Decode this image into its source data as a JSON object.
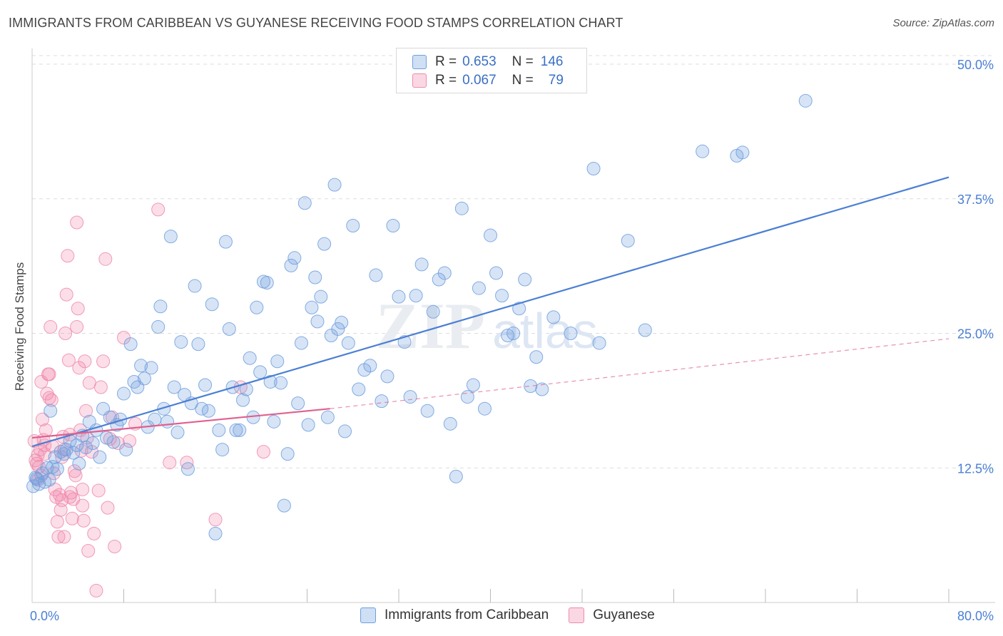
{
  "title": "IMMIGRANTS FROM CARIBBEAN VS GUYANESE RECEIVING FOOD STAMPS CORRELATION CHART",
  "source": "Source: ZipAtlas.com",
  "watermark": {
    "zip": "ZIP",
    "atlas": "atlas"
  },
  "legend": {
    "rows": [
      {
        "r_label": "R =",
        "r_value": "0.653",
        "n_label": "N =",
        "n_value": "146",
        "color": "#6f9fde"
      },
      {
        "r_label": "R =",
        "r_value": "0.067",
        "n_label": "N =",
        "n_value": "79",
        "color": "#f08aab"
      }
    ]
  },
  "bottom_legend": [
    {
      "label": "Immigrants from Caribbean",
      "color": "#6f9fde"
    },
    {
      "label": "Guyanese",
      "color": "#f08aab"
    }
  ],
  "colors": {
    "blue": "#4a7fd4",
    "pink": "#e0608e",
    "tick_text": "#4a7fd4",
    "grid": "#dddddd"
  },
  "chart_data": {
    "type": "scatter",
    "ylabel": "Receiving Food Stamps",
    "xlim": [
      0,
      80
    ],
    "ylim": [
      0,
      50
    ],
    "x_tick_labels": [
      "0.0%",
      "80.0%"
    ],
    "y_ticks": [
      12.5,
      25.0,
      37.5,
      50.0
    ],
    "y_tick_labels": [
      "12.5%",
      "25.0%",
      "37.5%",
      "50.0%"
    ],
    "grid": true,
    "series": [
      {
        "name": "Immigrants from Caribbean",
        "color": "#6f9fde",
        "trend": {
          "x": [
            0,
            80
          ],
          "y": [
            14.5,
            39.5
          ],
          "dashed": false
        },
        "points": [
          [
            0.1,
            10.8
          ],
          [
            0.4,
            11.5
          ],
          [
            0.6,
            11.0
          ],
          [
            0.9,
            12.0
          ],
          [
            1.1,
            11.2
          ],
          [
            1.3,
            12.5
          ],
          [
            1.5,
            11.4
          ],
          [
            1.8,
            12.6
          ],
          [
            2.0,
            13.5
          ],
          [
            2.2,
            12.4
          ],
          [
            2.5,
            14.0
          ],
          [
            2.8,
            13.8
          ],
          [
            3.0,
            14.2
          ],
          [
            3.3,
            15.0
          ],
          [
            3.6,
            13.9
          ],
          [
            3.9,
            14.6
          ],
          [
            4.1,
            12.9
          ],
          [
            4.4,
            15.5
          ],
          [
            4.7,
            14.4
          ],
          [
            5.0,
            16.8
          ],
          [
            5.3,
            14.8
          ],
          [
            5.6,
            16.0
          ],
          [
            5.9,
            13.5
          ],
          [
            6.2,
            18.0
          ],
          [
            6.5,
            15.3
          ],
          [
            6.8,
            17.2
          ],
          [
            7.1,
            14.9
          ],
          [
            7.4,
            16.5
          ],
          [
            7.7,
            17.0
          ],
          [
            8.0,
            19.4
          ],
          [
            8.2,
            14.2
          ],
          [
            8.6,
            24.0
          ],
          [
            8.9,
            20.5
          ],
          [
            9.2,
            20.0
          ],
          [
            9.5,
            22.0
          ],
          [
            9.8,
            20.8
          ],
          [
            10.1,
            16.3
          ],
          [
            10.4,
            21.8
          ],
          [
            10.7,
            17.0
          ],
          [
            11.0,
            25.6
          ],
          [
            11.2,
            27.5
          ],
          [
            11.5,
            18.0
          ],
          [
            11.8,
            16.8
          ],
          [
            12.1,
            34.0
          ],
          [
            12.4,
            20.0
          ],
          [
            12.7,
            15.8
          ],
          [
            13.0,
            24.2
          ],
          [
            13.3,
            19.3
          ],
          [
            13.6,
            12.4
          ],
          [
            13.9,
            18.5
          ],
          [
            14.2,
            29.4
          ],
          [
            14.5,
            24.0
          ],
          [
            14.8,
            18.0
          ],
          [
            15.1,
            20.2
          ],
          [
            15.4,
            17.8
          ],
          [
            15.7,
            27.7
          ],
          [
            16.0,
            6.4
          ],
          [
            16.3,
            16.0
          ],
          [
            16.6,
            14.2
          ],
          [
            16.9,
            33.5
          ],
          [
            17.2,
            25.4
          ],
          [
            17.5,
            20.0
          ],
          [
            17.8,
            16.0
          ],
          [
            18.1,
            16.0
          ],
          [
            18.4,
            18.8
          ],
          [
            18.7,
            19.8
          ],
          [
            19.0,
            22.7
          ],
          [
            19.3,
            17.2
          ],
          [
            19.6,
            27.4
          ],
          [
            19.9,
            21.4
          ],
          [
            20.2,
            29.8
          ],
          [
            20.5,
            29.7
          ],
          [
            20.8,
            20.5
          ],
          [
            21.1,
            16.8
          ],
          [
            21.4,
            22.4
          ],
          [
            21.7,
            20.4
          ],
          [
            22.0,
            9.0
          ],
          [
            22.3,
            13.8
          ],
          [
            22.6,
            31.3
          ],
          [
            22.9,
            32.0
          ],
          [
            23.2,
            18.5
          ],
          [
            23.5,
            24.1
          ],
          [
            23.8,
            37.1
          ],
          [
            24.1,
            16.5
          ],
          [
            24.4,
            27.4
          ],
          [
            24.7,
            30.2
          ],
          [
            24.9,
            26.1
          ],
          [
            25.2,
            28.4
          ],
          [
            25.5,
            33.3
          ],
          [
            25.8,
            17.2
          ],
          [
            26.1,
            24.8
          ],
          [
            26.4,
            38.8
          ],
          [
            26.7,
            25.4
          ],
          [
            27.0,
            26.0
          ],
          [
            27.3,
            15.9
          ],
          [
            27.6,
            24.1
          ],
          [
            28.0,
            35.0
          ],
          [
            28.5,
            19.8
          ],
          [
            29.0,
            21.6
          ],
          [
            29.5,
            22.0
          ],
          [
            30.0,
            30.4
          ],
          [
            30.5,
            18.7
          ],
          [
            31.0,
            21.0
          ],
          [
            31.5,
            35.0
          ],
          [
            32.0,
            28.4
          ],
          [
            32.5,
            24.2
          ],
          [
            33.0,
            19.1
          ],
          [
            33.5,
            28.5
          ],
          [
            34.0,
            31.4
          ],
          [
            34.5,
            17.8
          ],
          [
            35.0,
            27.0
          ],
          [
            35.5,
            30.0
          ],
          [
            36.0,
            30.6
          ],
          [
            36.5,
            16.6
          ],
          [
            37.0,
            11.7
          ],
          [
            37.5,
            36.6
          ],
          [
            38.0,
            19.1
          ],
          [
            38.5,
            20.2
          ],
          [
            39.0,
            29.2
          ],
          [
            39.5,
            18.0
          ],
          [
            40.0,
            34.1
          ],
          [
            40.5,
            30.6
          ],
          [
            41.0,
            28.5
          ],
          [
            41.5,
            24.8
          ],
          [
            42.0,
            25.0
          ],
          [
            42.5,
            27.3
          ],
          [
            43.0,
            30.0
          ],
          [
            43.5,
            20.1
          ],
          [
            44.0,
            22.8
          ],
          [
            44.5,
            19.8
          ],
          [
            45.5,
            26.5
          ],
          [
            47.0,
            25.0
          ],
          [
            49.0,
            40.3
          ],
          [
            49.5,
            24.1
          ],
          [
            52.0,
            33.6
          ],
          [
            53.5,
            25.3
          ],
          [
            58.5,
            41.9
          ],
          [
            61.5,
            41.5
          ],
          [
            62.0,
            41.8
          ],
          [
            67.5,
            46.6
          ],
          [
            0.3,
            11.6
          ],
          [
            1.6,
            17.8
          ]
        ]
      },
      {
        "name": "Guyanese",
        "color": "#f08aab",
        "trend": {
          "x": [
            0,
            26
          ],
          "y": [
            15.3,
            18.0
          ],
          "dashed": false
        },
        "trend_extension": {
          "x": [
            26,
            80
          ],
          "y": [
            18.0,
            24.5
          ],
          "dashed": true
        },
        "points": [
          [
            0.2,
            15.0
          ],
          [
            0.3,
            13.2
          ],
          [
            0.4,
            12.9
          ],
          [
            0.5,
            13.7
          ],
          [
            0.6,
            12.6
          ],
          [
            0.7,
            14.2
          ],
          [
            0.8,
            11.8
          ],
          [
            0.9,
            17.0
          ],
          [
            1.0,
            15.1
          ],
          [
            1.1,
            13.8
          ],
          [
            1.2,
            16.0
          ],
          [
            1.3,
            19.4
          ],
          [
            1.4,
            21.2
          ],
          [
            1.5,
            19.0
          ],
          [
            1.6,
            25.6
          ],
          [
            1.7,
            18.8
          ],
          [
            1.8,
            14.5
          ],
          [
            1.9,
            12.0
          ],
          [
            2.0,
            10.5
          ],
          [
            2.1,
            9.8
          ],
          [
            2.2,
            7.5
          ],
          [
            2.3,
            6.1
          ],
          [
            2.4,
            10.0
          ],
          [
            2.5,
            8.6
          ],
          [
            2.6,
            13.5
          ],
          [
            2.7,
            15.4
          ],
          [
            2.8,
            14.2
          ],
          [
            2.9,
            25.0
          ],
          [
            3.0,
            28.6
          ],
          [
            3.1,
            32.2
          ],
          [
            3.2,
            22.5
          ],
          [
            3.3,
            15.6
          ],
          [
            3.4,
            10.2
          ],
          [
            3.5,
            7.8
          ],
          [
            3.6,
            9.6
          ],
          [
            3.7,
            12.2
          ],
          [
            3.8,
            11.8
          ],
          [
            3.9,
            35.3
          ],
          [
            4.0,
            27.3
          ],
          [
            4.1,
            21.8
          ],
          [
            4.2,
            16.0
          ],
          [
            4.3,
            14.1
          ],
          [
            4.4,
            10.5
          ],
          [
            4.5,
            7.6
          ],
          [
            4.6,
            22.4
          ],
          [
            4.7,
            17.8
          ],
          [
            4.8,
            15.3
          ],
          [
            4.9,
            4.8
          ],
          [
            5.0,
            20.4
          ],
          [
            5.2,
            14.0
          ],
          [
            5.4,
            6.4
          ],
          [
            5.6,
            1.1
          ],
          [
            5.8,
            10.4
          ],
          [
            6.0,
            20.0
          ],
          [
            6.2,
            22.4
          ],
          [
            6.4,
            31.9
          ],
          [
            6.6,
            8.8
          ],
          [
            6.8,
            15.2
          ],
          [
            7.0,
            17.2
          ],
          [
            7.2,
            5.2
          ],
          [
            7.5,
            14.8
          ],
          [
            8.0,
            24.6
          ],
          [
            8.5,
            15.0
          ],
          [
            9.0,
            16.6
          ],
          [
            11.0,
            36.5
          ],
          [
            12.0,
            13.0
          ],
          [
            13.5,
            13.0
          ],
          [
            16.0,
            7.7
          ],
          [
            18.2,
            20.0
          ],
          [
            20.2,
            14.0
          ],
          [
            0.5,
            11.4
          ],
          [
            0.8,
            20.5
          ],
          [
            1.1,
            14.6
          ],
          [
            1.5,
            21.2
          ],
          [
            2.6,
            9.5
          ],
          [
            2.8,
            6.1
          ],
          [
            3.3,
            9.8
          ],
          [
            3.9,
            25.6
          ],
          [
            4.4,
            9.0
          ]
        ]
      }
    ]
  }
}
